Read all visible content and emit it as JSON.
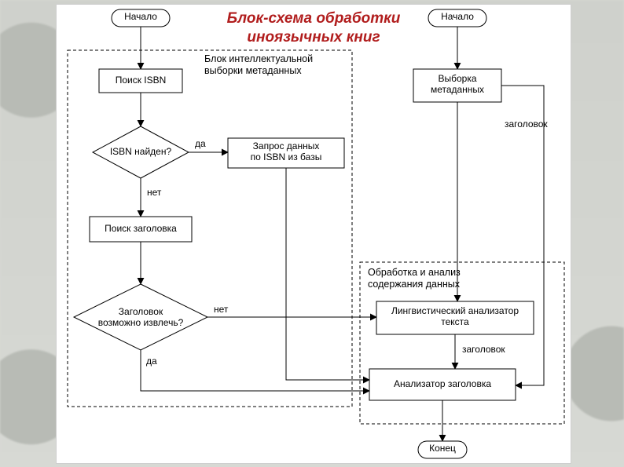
{
  "title_line1": "Блок-схема обработки",
  "title_line2": "иноязычных книг",
  "colors": {
    "title": "#b11d1d",
    "stroke": "#000000",
    "bg": "#ffffff",
    "dash": "#000000"
  },
  "style": {
    "node_stroke_width": 1.2,
    "edge_stroke_width": 1,
    "arrowhead": "filled-triangle",
    "dash_pattern": "4 3",
    "font_family": "Arial",
    "label_fontsize": 12,
    "section_fontsize": 12.5,
    "title_fontsize": 19
  },
  "sections": {
    "left": {
      "label": "Блок интеллектуальной\nвыборки метаданных"
    },
    "right": {
      "label": "Обработка и анализ\nсодержания данных"
    }
  },
  "nodes": {
    "start1": {
      "shape": "terminator",
      "label": "Начало"
    },
    "start2": {
      "shape": "terminator",
      "label": "Начало"
    },
    "isbn_search": {
      "shape": "process",
      "label": "Поиск ISBN"
    },
    "meta_pick": {
      "shape": "process",
      "label": "Выборка\nметаданных"
    },
    "isbn_found": {
      "shape": "decision",
      "label": "ISBN найден?"
    },
    "isbn_query": {
      "shape": "process",
      "label": "Запрос данных\nпо ISBN из базы"
    },
    "title_search": {
      "shape": "process",
      "label": "Поиск заголовка"
    },
    "title_extract": {
      "shape": "decision",
      "label": "Заголовок\nвозможно извлечь?"
    },
    "ling": {
      "shape": "process",
      "label": "Лингвистический анализатор\nтекста"
    },
    "titlean": {
      "shape": "process",
      "label": "Анализатор заголовка"
    },
    "end": {
      "shape": "terminator",
      "label": "Конец"
    }
  },
  "edge_labels": {
    "isbn_yes": "да",
    "isbn_no": "нет",
    "title_yes": "да",
    "title_no": "нет",
    "header1": "заголовок",
    "header2": "заголовок"
  },
  "layout_note": "positions are hand-tuned absolute coordinates inside a 654x584 white sheet"
}
